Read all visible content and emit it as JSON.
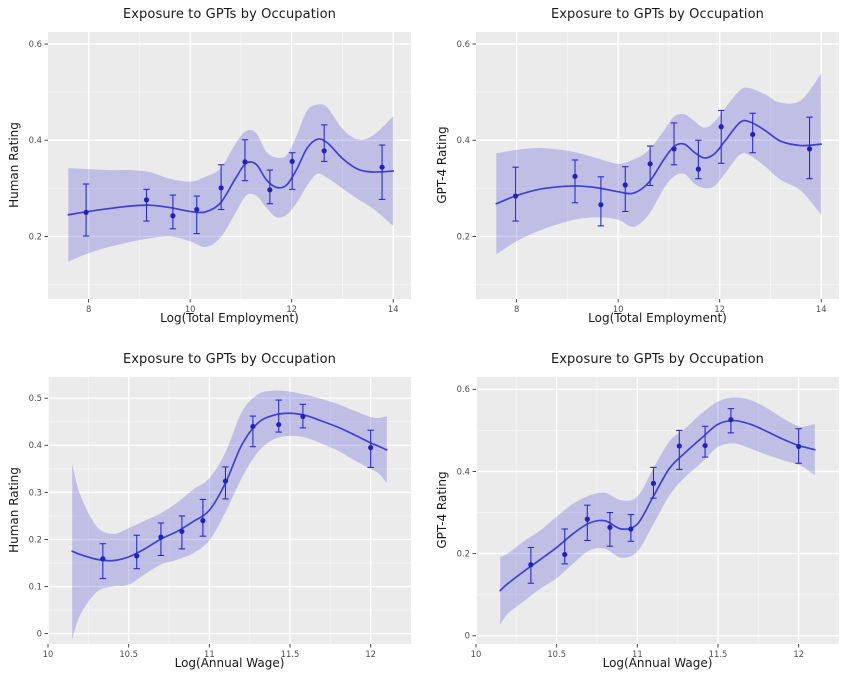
{
  "palette": {
    "page_bg": "#ffffff",
    "panel_bg": "#ebebeb",
    "grid_major": "#ffffff",
    "grid_minor": "#f7f7f7",
    "band_color": "#4949d6",
    "band_opacity": 0.27,
    "line_color": "#3f3fd3",
    "point_color": "#2222bb",
    "errorbar_color": "#2b2bc8",
    "tick_mark_color": "#333333",
    "tick_label_color": "#4d4d4d",
    "text_color": "#1a1a1a"
  },
  "chart_data": [
    {
      "id": "human-rating-vs-log-total-employment",
      "type": "line",
      "title": "Exposure to GPTs by Occupation",
      "xlabel": "Log(Total Employment)",
      "ylabel": "Human Rating",
      "xlim": [
        7.2,
        14.35
      ],
      "ylim": [
        0.07,
        0.625
      ],
      "xticks": [
        8,
        10,
        12,
        14
      ],
      "xminor": [
        9,
        11,
        13
      ],
      "yticks": [
        0.2,
        0.4,
        0.6
      ],
      "yminor": [
        0.1,
        0.3,
        0.5
      ],
      "grid": true,
      "legend": "none",
      "smooth": {
        "x": [
          7.6,
          8.0,
          8.4,
          8.8,
          9.2,
          9.6,
          10.0,
          10.3,
          10.6,
          10.9,
          11.1,
          11.3,
          11.5,
          11.7,
          11.9,
          12.1,
          12.3,
          12.5,
          12.7,
          13.0,
          13.3,
          13.6,
          14.0
        ],
        "y": [
          0.245,
          0.252,
          0.258,
          0.263,
          0.265,
          0.26,
          0.252,
          0.251,
          0.27,
          0.322,
          0.352,
          0.35,
          0.318,
          0.302,
          0.307,
          0.34,
          0.383,
          0.402,
          0.395,
          0.362,
          0.34,
          0.334,
          0.336
        ],
        "lo": [
          0.148,
          0.165,
          0.178,
          0.188,
          0.196,
          0.2,
          0.19,
          0.178,
          0.198,
          0.25,
          0.285,
          0.285,
          0.26,
          0.24,
          0.245,
          0.27,
          0.305,
          0.33,
          0.322,
          0.3,
          0.278,
          0.258,
          0.222
        ],
        "hi": [
          0.342,
          0.34,
          0.338,
          0.338,
          0.334,
          0.32,
          0.314,
          0.324,
          0.342,
          0.394,
          0.419,
          0.415,
          0.376,
          0.364,
          0.369,
          0.41,
          0.461,
          0.474,
          0.468,
          0.424,
          0.402,
          0.41,
          0.45
        ]
      },
      "points": {
        "x": [
          7.95,
          9.14,
          9.66,
          10.13,
          10.61,
          11.08,
          11.57,
          12.01,
          12.64,
          13.78
        ],
        "y": [
          0.25,
          0.276,
          0.243,
          0.256,
          0.301,
          0.355,
          0.297,
          0.356,
          0.378,
          0.344
        ],
        "lo": [
          0.201,
          0.232,
          0.216,
          0.206,
          0.256,
          0.316,
          0.268,
          0.298,
          0.356,
          0.277
        ],
        "hi": [
          0.309,
          0.298,
          0.286,
          0.284,
          0.349,
          0.401,
          0.338,
          0.374,
          0.432,
          0.39
        ]
      }
    },
    {
      "id": "gpt4-rating-vs-log-total-employment",
      "type": "line",
      "title": "Exposure to GPTs by Occupation",
      "xlabel": "Log(Total Employment)",
      "ylabel": "GPT-4 Rating",
      "xlim": [
        7.2,
        14.35
      ],
      "ylim": [
        0.07,
        0.625
      ],
      "xticks": [
        8,
        10,
        12,
        14
      ],
      "xminor": [
        9,
        11,
        13
      ],
      "yticks": [
        0.2,
        0.4,
        0.6
      ],
      "yminor": [
        0.1,
        0.3,
        0.5
      ],
      "grid": true,
      "legend": "none",
      "smooth": {
        "x": [
          7.6,
          8.0,
          8.4,
          8.8,
          9.2,
          9.6,
          10.0,
          10.3,
          10.6,
          10.9,
          11.1,
          11.3,
          11.5,
          11.7,
          11.9,
          12.1,
          12.4,
          12.6,
          12.9,
          13.2,
          13.6,
          14.0
        ],
        "y": [
          0.268,
          0.285,
          0.297,
          0.303,
          0.305,
          0.301,
          0.293,
          0.29,
          0.312,
          0.36,
          0.387,
          0.392,
          0.375,
          0.363,
          0.372,
          0.398,
          0.437,
          0.438,
          0.42,
          0.398,
          0.389,
          0.392
        ],
        "lo": [
          0.163,
          0.19,
          0.21,
          0.225,
          0.236,
          0.24,
          0.235,
          0.22,
          0.245,
          0.3,
          0.325,
          0.33,
          0.31,
          0.3,
          0.305,
          0.33,
          0.37,
          0.368,
          0.345,
          0.318,
          0.295,
          0.245
        ],
        "hi": [
          0.373,
          0.38,
          0.384,
          0.381,
          0.374,
          0.362,
          0.351,
          0.36,
          0.379,
          0.42,
          0.449,
          0.454,
          0.44,
          0.426,
          0.439,
          0.466,
          0.504,
          0.508,
          0.495,
          0.478,
          0.483,
          0.539
        ]
      },
      "points": {
        "x": [
          7.98,
          9.15,
          9.66,
          10.14,
          10.63,
          11.1,
          11.58,
          12.03,
          12.65,
          13.77
        ],
        "y": [
          0.284,
          0.325,
          0.266,
          0.307,
          0.351,
          0.382,
          0.34,
          0.428,
          0.412,
          0.382
        ],
        "lo": [
          0.232,
          0.27,
          0.222,
          0.252,
          0.306,
          0.349,
          0.32,
          0.352,
          0.374,
          0.32
        ],
        "hi": [
          0.344,
          0.359,
          0.324,
          0.345,
          0.388,
          0.436,
          0.4,
          0.462,
          0.456,
          0.448
        ]
      }
    },
    {
      "id": "human-rating-vs-log-annual-wage",
      "type": "line",
      "title": "Exposure to GPTs by Occupation",
      "xlabel": "Log(Annual Wage)",
      "ylabel": "Human Rating",
      "xlim": [
        10.0,
        12.25
      ],
      "ylim": [
        -0.022,
        0.545
      ],
      "xticks": [
        10,
        10.5,
        11,
        11.5,
        12
      ],
      "xminor": [
        10.25,
        10.75,
        11.25,
        11.75
      ],
      "yticks": [
        0,
        0.1,
        0.2,
        0.3,
        0.4,
        0.5
      ],
      "yminor": [
        0.05,
        0.15,
        0.25,
        0.35,
        0.45
      ],
      "grid": true,
      "legend": "none",
      "smooth": {
        "x": [
          10.15,
          10.2,
          10.3,
          10.4,
          10.5,
          10.6,
          10.7,
          10.8,
          10.9,
          11.0,
          11.1,
          11.2,
          11.3,
          11.4,
          11.5,
          11.6,
          11.7,
          11.8,
          11.9,
          12.0,
          12.05,
          12.1
        ],
        "y": [
          0.175,
          0.168,
          0.158,
          0.155,
          0.163,
          0.18,
          0.201,
          0.217,
          0.238,
          0.262,
          0.32,
          0.4,
          0.447,
          0.464,
          0.468,
          0.463,
          0.451,
          0.438,
          0.422,
          0.405,
          0.398,
          0.39
        ],
        "lo": [
          -0.012,
          0.04,
          0.088,
          0.1,
          0.104,
          0.126,
          0.147,
          0.157,
          0.171,
          0.198,
          0.258,
          0.33,
          0.385,
          0.413,
          0.42,
          0.416,
          0.403,
          0.388,
          0.368,
          0.35,
          0.34,
          0.32
        ],
        "hi": [
          0.36,
          0.295,
          0.228,
          0.212,
          0.224,
          0.24,
          0.256,
          0.278,
          0.306,
          0.33,
          0.385,
          0.47,
          0.508,
          0.516,
          0.514,
          0.507,
          0.498,
          0.487,
          0.473,
          0.46,
          0.458,
          0.462
        ]
      },
      "points": {
        "x": [
          10.34,
          10.55,
          10.7,
          10.83,
          10.96,
          11.1,
          11.27,
          11.43,
          11.58,
          12.0
        ],
        "y": [
          0.159,
          0.165,
          0.205,
          0.217,
          0.24,
          0.324,
          0.44,
          0.444,
          0.461,
          0.395
        ],
        "lo": [
          0.117,
          0.138,
          0.166,
          0.18,
          0.207,
          0.286,
          0.397,
          0.428,
          0.437,
          0.353
        ],
        "hi": [
          0.191,
          0.209,
          0.235,
          0.25,
          0.285,
          0.354,
          0.462,
          0.496,
          0.487,
          0.432
        ]
      }
    },
    {
      "id": "gpt4-rating-vs-log-annual-wage",
      "type": "line",
      "title": "Exposure to GPTs by Occupation",
      "xlabel": "Log(Annual Wage)",
      "ylabel": "GPT-4 Rating",
      "xlim": [
        10.0,
        12.25
      ],
      "ylim": [
        -0.02,
        0.63
      ],
      "xticks": [
        10,
        10.5,
        11,
        11.5,
        12
      ],
      "xminor": [
        10.25,
        10.75,
        11.25,
        11.75
      ],
      "yticks": [
        0,
        0.2,
        0.4,
        0.6
      ],
      "yminor": [
        0.1,
        0.3,
        0.5
      ],
      "grid": true,
      "legend": "none",
      "smooth": {
        "x": [
          10.15,
          10.2,
          10.3,
          10.4,
          10.5,
          10.6,
          10.7,
          10.8,
          10.9,
          11.0,
          11.1,
          11.2,
          11.3,
          11.4,
          11.5,
          11.6,
          11.7,
          11.8,
          11.9,
          12.0,
          12.05,
          12.1
        ],
        "y": [
          0.11,
          0.128,
          0.158,
          0.186,
          0.215,
          0.248,
          0.274,
          0.28,
          0.26,
          0.272,
          0.34,
          0.408,
          0.447,
          0.482,
          0.515,
          0.524,
          0.515,
          0.498,
          0.479,
          0.463,
          0.458,
          0.453
        ],
        "lo": [
          0.028,
          0.055,
          0.085,
          0.115,
          0.14,
          0.175,
          0.207,
          0.212,
          0.19,
          0.205,
          0.272,
          0.342,
          0.388,
          0.422,
          0.46,
          0.468,
          0.456,
          0.441,
          0.428,
          0.416,
          0.405,
          0.39
        ],
        "hi": [
          0.192,
          0.201,
          0.231,
          0.257,
          0.29,
          0.321,
          0.341,
          0.348,
          0.33,
          0.339,
          0.408,
          0.474,
          0.506,
          0.542,
          0.57,
          0.58,
          0.574,
          0.555,
          0.53,
          0.51,
          0.511,
          0.516
        ]
      },
      "points": {
        "x": [
          10.34,
          10.55,
          10.69,
          10.83,
          10.96,
          11.1,
          11.26,
          11.42,
          11.58,
          12.0
        ],
        "y": [
          0.173,
          0.198,
          0.284,
          0.264,
          0.26,
          0.371,
          0.462,
          0.463,
          0.526,
          0.461
        ],
        "lo": [
          0.128,
          0.175,
          0.232,
          0.218,
          0.23,
          0.335,
          0.405,
          0.435,
          0.494,
          0.42
        ],
        "hi": [
          0.215,
          0.26,
          0.318,
          0.3,
          0.295,
          0.41,
          0.5,
          0.51,
          0.553,
          0.504
        ]
      }
    }
  ]
}
